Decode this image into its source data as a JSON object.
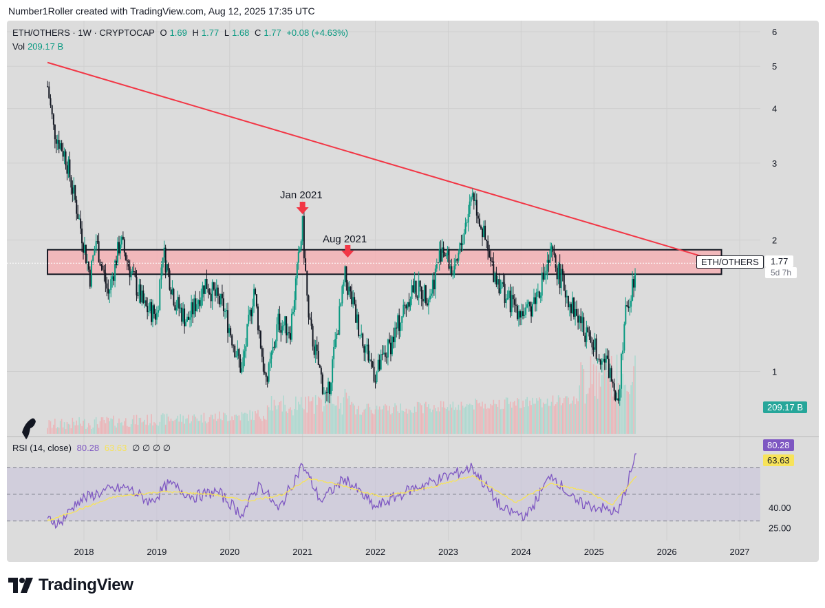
{
  "header": {
    "credit": "Number1Roller created with TradingView.com, Aug 12, 2025 17:35 UTC"
  },
  "legend": {
    "symbol": "ETH/OTHERS · 1W · CRYPTOCAP",
    "o_label": "O",
    "o_val": "1.69",
    "h_label": "H",
    "h_val": "1.77",
    "l_label": "L",
    "l_val": "1.68",
    "c_label": "C",
    "c_val": "1.77",
    "change": "+0.08 (+4.63%)",
    "vol_label": "Vol",
    "vol_val": "209.17 B"
  },
  "rsi_legend": {
    "label": "RSI (14, close)",
    "rsi_val": "80.28",
    "ma_val": "63.63",
    "extras": "∅ ∅ ∅ ∅"
  },
  "price_tag": {
    "name": "ETH/OTHERS",
    "value": "1.77",
    "countdown": "5d 7h"
  },
  "vol_tag": "209.17 B",
  "rsi_tags": {
    "rsi": "80.28",
    "ma": "63.63"
  },
  "annotations": {
    "jan": "Jan 2021",
    "aug": "Aug 2021"
  },
  "footer": {
    "brand": "TradingView"
  },
  "colors": {
    "up": "#089981",
    "down": "#131722",
    "trend": "#f23645",
    "zone": "#f4b2b5",
    "rsi": "#7e57c2",
    "rsi_ma": "#f7e35a"
  },
  "chart_data": {
    "type": "line",
    "x_ticks": [
      "2018",
      "2019",
      "2020",
      "2021",
      "2022",
      "2023",
      "2024",
      "2025",
      "2026",
      "2027"
    ],
    "y_ticks": [
      "1",
      "2",
      "3",
      "4",
      "5",
      "6"
    ],
    "rsi_ticks": [
      "25.00",
      "40.00"
    ],
    "scale": "log",
    "trendline": {
      "from": {
        "x": "2017-07",
        "y": 5.1
      },
      "to": {
        "x": "2026-10",
        "y": 1.78
      }
    },
    "resistance_zone": {
      "y_low": 1.67,
      "y_high": 1.9
    },
    "series": [
      {
        "values": [
          {
            "x": "2017-07",
            "y": 4.5
          },
          {
            "x": "2017-08",
            "y": 3.6
          },
          {
            "x": "2017-10",
            "y": 3.1
          },
          {
            "x": "2017-12",
            "y": 2.3
          },
          {
            "x": "2018-02",
            "y": 1.65
          },
          {
            "x": "2018-03",
            "y": 2.0
          },
          {
            "x": "2018-05",
            "y": 1.5
          },
          {
            "x": "2018-07",
            "y": 2.0
          },
          {
            "x": "2018-09",
            "y": 1.65
          },
          {
            "x": "2018-11",
            "y": 1.4
          },
          {
            "x": "2019-01",
            "y": 1.35
          },
          {
            "x": "2019-02",
            "y": 1.9
          },
          {
            "x": "2019-04",
            "y": 1.45
          },
          {
            "x": "2019-06",
            "y": 1.3
          },
          {
            "x": "2019-09",
            "y": 1.6
          },
          {
            "x": "2019-12",
            "y": 1.4
          },
          {
            "x": "2020-03",
            "y": 1.0
          },
          {
            "x": "2020-05",
            "y": 1.55
          },
          {
            "x": "2020-07",
            "y": 0.92
          },
          {
            "x": "2020-09",
            "y": 1.3
          },
          {
            "x": "2020-11",
            "y": 1.25
          },
          {
            "x": "2021-01",
            "y": 2.15
          },
          {
            "x": "2021-02",
            "y": 1.3
          },
          {
            "x": "2021-05",
            "y": 0.85
          },
          {
            "x": "2021-08",
            "y": 1.65
          },
          {
            "x": "2021-10",
            "y": 1.3
          },
          {
            "x": "2022-01",
            "y": 0.98
          },
          {
            "x": "2022-04",
            "y": 1.2
          },
          {
            "x": "2022-07",
            "y": 1.55
          },
          {
            "x": "2022-10",
            "y": 1.5
          },
          {
            "x": "2022-12",
            "y": 1.95
          },
          {
            "x": "2023-02",
            "y": 1.65
          },
          {
            "x": "2023-05",
            "y": 2.6
          },
          {
            "x": "2023-08",
            "y": 1.75
          },
          {
            "x": "2023-11",
            "y": 1.45
          },
          {
            "x": "2024-02",
            "y": 1.35
          },
          {
            "x": "2024-04",
            "y": 1.55
          },
          {
            "x": "2024-06",
            "y": 1.85
          },
          {
            "x": "2024-09",
            "y": 1.45
          },
          {
            "x": "2024-12",
            "y": 1.2
          },
          {
            "x": "2025-03",
            "y": 1.05
          },
          {
            "x": "2025-05",
            "y": 0.88
          },
          {
            "x": "2025-06",
            "y": 1.3
          },
          {
            "x": "2025-08",
            "y": 1.77
          }
        ]
      }
    ],
    "rsi_series": [
      {
        "x": "2017-07",
        "y": 32
      },
      {
        "x": "2017-09",
        "y": 28
      },
      {
        "x": "2017-12",
        "y": 45
      },
      {
        "x": "2018-04",
        "y": 52
      },
      {
        "x": "2018-08",
        "y": 55
      },
      {
        "x": "2018-12",
        "y": 44
      },
      {
        "x": "2019-03",
        "y": 58
      },
      {
        "x": "2019-07",
        "y": 48
      },
      {
        "x": "2019-11",
        "y": 52
      },
      {
        "x": "2020-03",
        "y": 35
      },
      {
        "x": "2020-06",
        "y": 58
      },
      {
        "x": "2020-09",
        "y": 38
      },
      {
        "x": "2021-01",
        "y": 72
      },
      {
        "x": "2021-04",
        "y": 45
      },
      {
        "x": "2021-08",
        "y": 62
      },
      {
        "x": "2022-01",
        "y": 40
      },
      {
        "x": "2022-06",
        "y": 52
      },
      {
        "x": "2022-12",
        "y": 62
      },
      {
        "x": "2023-05",
        "y": 70
      },
      {
        "x": "2023-10",
        "y": 38
      },
      {
        "x": "2024-02",
        "y": 34
      },
      {
        "x": "2024-06",
        "y": 65
      },
      {
        "x": "2024-10",
        "y": 44
      },
      {
        "x": "2025-02",
        "y": 40
      },
      {
        "x": "2025-05",
        "y": 36
      },
      {
        "x": "2025-08",
        "y": 80.28
      }
    ],
    "rsi_ma_series": [
      {
        "x": "2017-07",
        "y": 30
      },
      {
        "x": "2018-06",
        "y": 48
      },
      {
        "x": "2019-02",
        "y": 52
      },
      {
        "x": "2019-10",
        "y": 50
      },
      {
        "x": "2020-04",
        "y": 45
      },
      {
        "x": "2020-10",
        "y": 50
      },
      {
        "x": "2021-02",
        "y": 62
      },
      {
        "x": "2021-08",
        "y": 56
      },
      {
        "x": "2022-02",
        "y": 48
      },
      {
        "x": "2022-10",
        "y": 55
      },
      {
        "x": "2023-05",
        "y": 64
      },
      {
        "x": "2023-12",
        "y": 44
      },
      {
        "x": "2024-06",
        "y": 58
      },
      {
        "x": "2024-12",
        "y": 52
      },
      {
        "x": "2025-04",
        "y": 42
      },
      {
        "x": "2025-08",
        "y": 63.63
      }
    ]
  }
}
